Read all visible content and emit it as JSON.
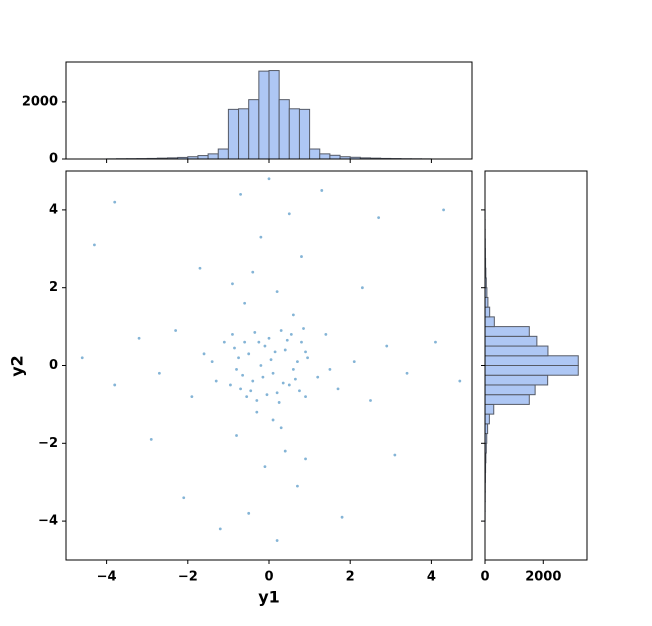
{
  "chart_data": [
    {
      "type": "scatter",
      "xlabel": "y1",
      "ylabel": "y2",
      "color": "#1f77b4",
      "xlim": [
        -5,
        5
      ],
      "ylim": [
        -5,
        5
      ],
      "xticks": [
        {
          "value": -4,
          "label": "−4"
        },
        {
          "value": -2,
          "label": "−2"
        },
        0,
        2,
        4
      ],
      "yticks": [
        {
          "value": -4,
          "label": "−4"
        },
        {
          "value": -2,
          "label": "−2"
        },
        0,
        2,
        4
      ],
      "x": [
        -0.9,
        -0.7,
        -0.5,
        -0.3,
        -0.1,
        0.1,
        0.3,
        0.5,
        0.7,
        0.9,
        -0.8,
        -0.6,
        -0.4,
        -0.2,
        0.0,
        0.2,
        0.4,
        0.6,
        0.8,
        0.95,
        -0.95,
        -0.75,
        -0.55,
        -0.35,
        -0.15,
        0.05,
        0.25,
        0.45,
        0.65,
        0.85,
        -0.85,
        -0.65,
        -0.45,
        -0.25,
        -0.05,
        0.15,
        0.35,
        0.55,
        0.75,
        0.9,
        -4.6,
        -3.8,
        -3.2,
        -2.7,
        -2.3,
        -1.9,
        -1.6,
        -1.3,
        -1.1,
        1.2,
        1.4,
        1.7,
        2.1,
        2.5,
        2.9,
        3.4,
        4.1,
        4.7,
        -1.4,
        1.5,
        0.2,
        -0.5,
        0.7,
        -0.1,
        0.4,
        -0.8,
        0.1,
        -0.3,
        0.6,
        -0.6,
        0.2,
        -0.4,
        0.8,
        -0.2,
        0.5,
        -0.7,
        0.0,
        0.3,
        -0.9,
        0.9,
        -3.8,
        4.3,
        -4.3,
        2.7,
        -2.1,
        3.1,
        -1.7,
        1.8,
        -2.9,
        2.3,
        -1.2,
        1.3
      ],
      "y": [
        0.8,
        -0.6,
        0.3,
        -0.9,
        0.5,
        -0.2,
        0.9,
        -0.5,
        0.1,
        -0.8,
        -0.1,
        0.6,
        -0.4,
        0.0,
        0.7,
        -0.7,
        0.4,
        -0.1,
        0.6,
        0.2,
        -0.5,
        0.2,
        -0.8,
        0.85,
        -0.3,
        0.15,
        -0.95,
        0.65,
        -0.35,
        0.95,
        0.45,
        -0.25,
        -0.65,
        0.6,
        -0.75,
        0.35,
        -0.45,
        0.8,
        -0.65,
        0.35,
        0.2,
        -0.5,
        0.7,
        -0.2,
        0.9,
        -0.8,
        0.3,
        -0.4,
        0.6,
        -0.3,
        0.8,
        -0.6,
        0.1,
        -0.9,
        0.5,
        -0.2,
        0.6,
        -0.4,
        0.1,
        -0.1,
        -4.5,
        -3.8,
        -3.1,
        -2.6,
        -2.2,
        -1.8,
        -1.4,
        -1.2,
        1.3,
        1.6,
        1.9,
        2.4,
        2.8,
        3.3,
        3.9,
        4.4,
        4.8,
        -1.6,
        2.1,
        -2.4,
        4.2,
        4.0,
        3.1,
        3.8,
        -3.4,
        -2.3,
        2.5,
        -3.9,
        -1.9,
        2.0,
        -4.2,
        4.5
      ]
    },
    {
      "type": "histogram",
      "orientation": "vertical",
      "color": "#aec7f4",
      "edgecolor": "#555a66",
      "ylim": [
        0,
        3400
      ],
      "yticks": [
        0,
        2000
      ],
      "bins": [
        -4,
        -3.75,
        -3.5,
        -3.25,
        -3,
        -2.75,
        -2.5,
        -2.25,
        -2,
        -1.75,
        -1.5,
        -1.25,
        -1,
        -0.75,
        -0.5,
        -0.25,
        0,
        0.25,
        0.5,
        0.75,
        1,
        1.25,
        1.5,
        1.75,
        2,
        2.25,
        2.5,
        2.75,
        3,
        3.25,
        3.5,
        3.75,
        4
      ],
      "values": [
        5,
        10,
        12,
        15,
        20,
        30,
        40,
        55,
        80,
        120,
        180,
        350,
        1740,
        1760,
        2080,
        3080,
        3100,
        2080,
        1760,
        1740,
        350,
        180,
        130,
        80,
        60,
        40,
        30,
        20,
        15,
        10,
        8,
        5
      ]
    },
    {
      "type": "histogram",
      "orientation": "horizontal",
      "color": "#aec7f4",
      "edgecolor": "#555a66",
      "xlim": [
        0,
        3500
      ],
      "xticks": [
        0,
        2000
      ],
      "bins": [
        -4,
        -3.75,
        -3.5,
        -3.25,
        -3,
        -2.75,
        -2.5,
        -2.25,
        -2,
        -1.75,
        -1.5,
        -1.25,
        -1,
        -0.75,
        -0.5,
        -0.25,
        0,
        0.25,
        0.5,
        0.75,
        1,
        1.25,
        1.5,
        1.75,
        2,
        2.25,
        2.5,
        2.75,
        3,
        3.25,
        3.5,
        3.75,
        4
      ],
      "values": [
        3,
        5,
        8,
        10,
        15,
        20,
        30,
        45,
        60,
        90,
        150,
        300,
        1520,
        1720,
        2150,
        3200,
        3200,
        2160,
        1780,
        1520,
        320,
        160,
        100,
        65,
        45,
        30,
        20,
        14,
        10,
        6,
        4,
        3
      ]
    }
  ]
}
